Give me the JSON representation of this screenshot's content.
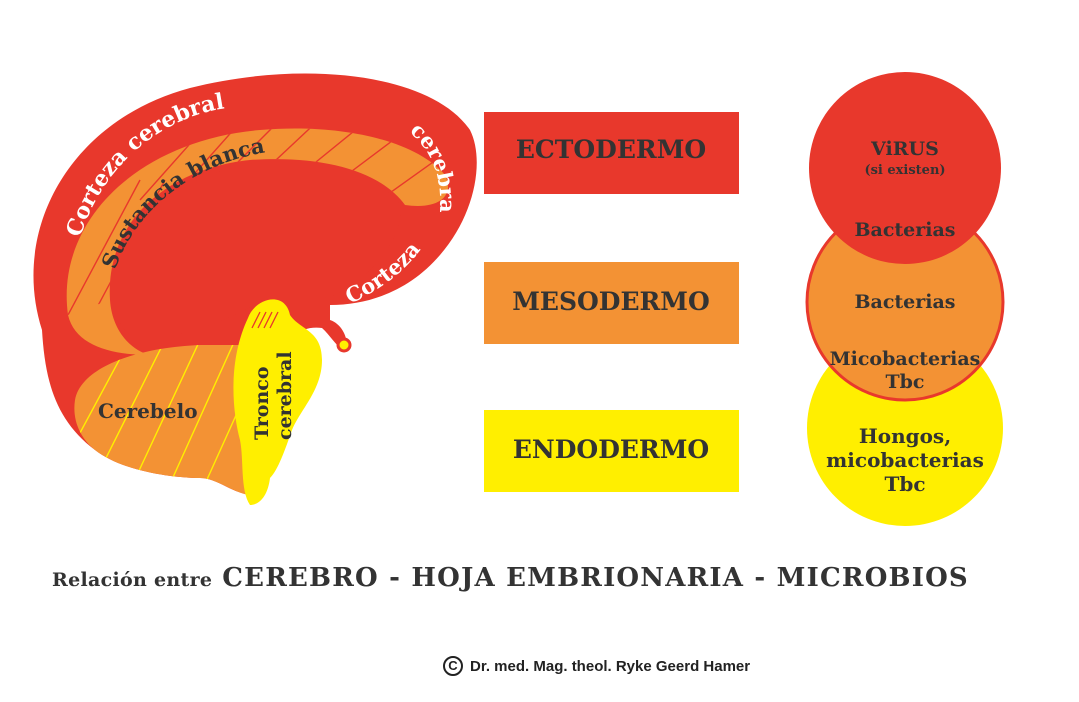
{
  "brain": {
    "corteza_top": "Corteza cerebral",
    "sustancia": "Sustancia blanca",
    "corteza_right_a": "cerebral",
    "corteza_right_b": "Corteza",
    "cerebelo": "Cerebelo",
    "tronco_1": "Tronco",
    "tronco_2": "cerebral"
  },
  "layers": {
    "ecto": "ECTODERMO",
    "meso": "MESODERMO",
    "endo": "ENDODERMO"
  },
  "circles": {
    "virus": "ViRUS",
    "virus_note": "(si existen)",
    "bacterias_overlap": "Bacterias",
    "bacterias": "Bacterias",
    "mico_overlap_1": "Micobacterias",
    "mico_overlap_2": "Tbc",
    "hongos_1": "Hongos,",
    "hongos_2": "micobacterias",
    "hongos_3": "Tbc"
  },
  "caption": {
    "prefix": "Relación entre",
    "main": "CEREBRO - HOJA EMBRIONARIA - MICROBIOS"
  },
  "credit": {
    "symbol": "C",
    "text": "Dr. med. Mag. theol. Ryke Geerd Hamer"
  },
  "colors": {
    "red": "#E8382C",
    "orange": "#F39234",
    "yellow": "#FFEF00",
    "text_dark": "#333333"
  }
}
